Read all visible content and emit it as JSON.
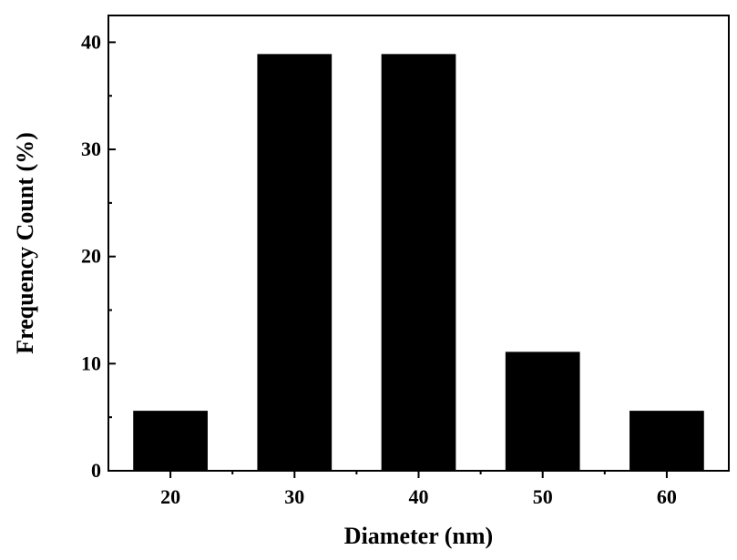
{
  "chart_data": {
    "type": "bar",
    "categories": [
      "20",
      "30",
      "40",
      "50",
      "60"
    ],
    "x": [
      20,
      30,
      40,
      50,
      60
    ],
    "values": [
      5.6,
      38.9,
      38.9,
      11.1,
      5.6
    ],
    "title": "",
    "xlabel": "Diameter (nm)",
    "ylabel": "Frequency Count (%)",
    "xlim": [
      15,
      65
    ],
    "ylim": [
      0,
      42.5
    ],
    "xticks": [
      20,
      30,
      40,
      50,
      60
    ],
    "yticks": [
      0,
      10,
      20,
      30,
      40
    ],
    "bar_color": "#000000",
    "grid": false,
    "legend": "none"
  }
}
